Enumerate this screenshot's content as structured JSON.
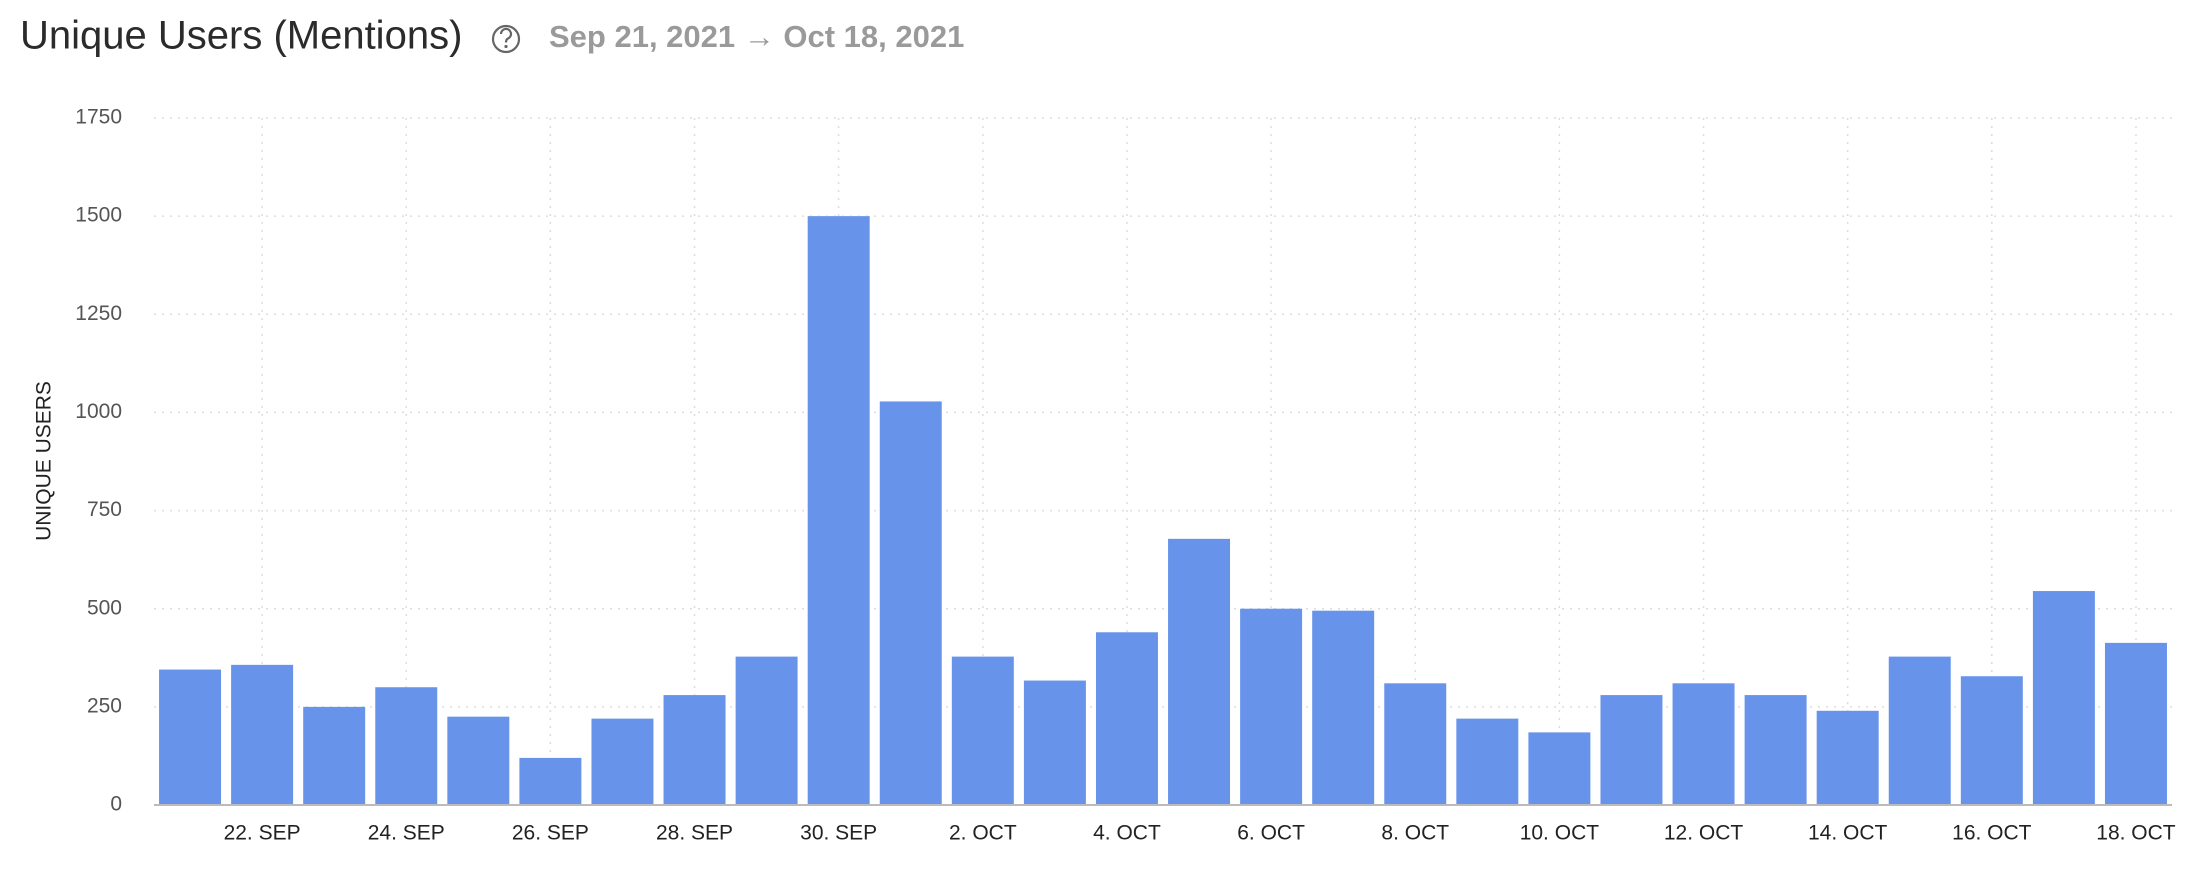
{
  "chart_data": {
    "type": "bar",
    "title": "Unique Users (Mentions)",
    "subtitle": "Sep 21, 2021 → Oct 18, 2021",
    "y_label": "UNIQUE USERS",
    "categories": [
      null,
      "22. SEP",
      null,
      "24. SEP",
      null,
      "26. SEP",
      null,
      "28. SEP",
      null,
      "30. SEP",
      null,
      "2. OCT",
      null,
      "4. OCT",
      null,
      "6. OCT",
      null,
      "8. OCT",
      null,
      "10. OCT",
      null,
      "12. OCT",
      null,
      "14. OCT",
      null,
      "16. OCT",
      null,
      "18. OCT"
    ],
    "values": [
      345,
      357,
      250,
      300,
      225,
      120,
      220,
      280,
      378,
      1500,
      1028,
      378,
      317,
      440,
      678,
      500,
      495,
      310,
      220,
      185,
      280,
      310,
      280,
      240,
      378,
      328,
      545,
      413
    ],
    "color": "#6794ea",
    "ylim": [
      0,
      1750
    ],
    "yticks": [
      0,
      250,
      500,
      750,
      1000,
      1250,
      1500,
      1750
    ],
    "grid": true
  }
}
